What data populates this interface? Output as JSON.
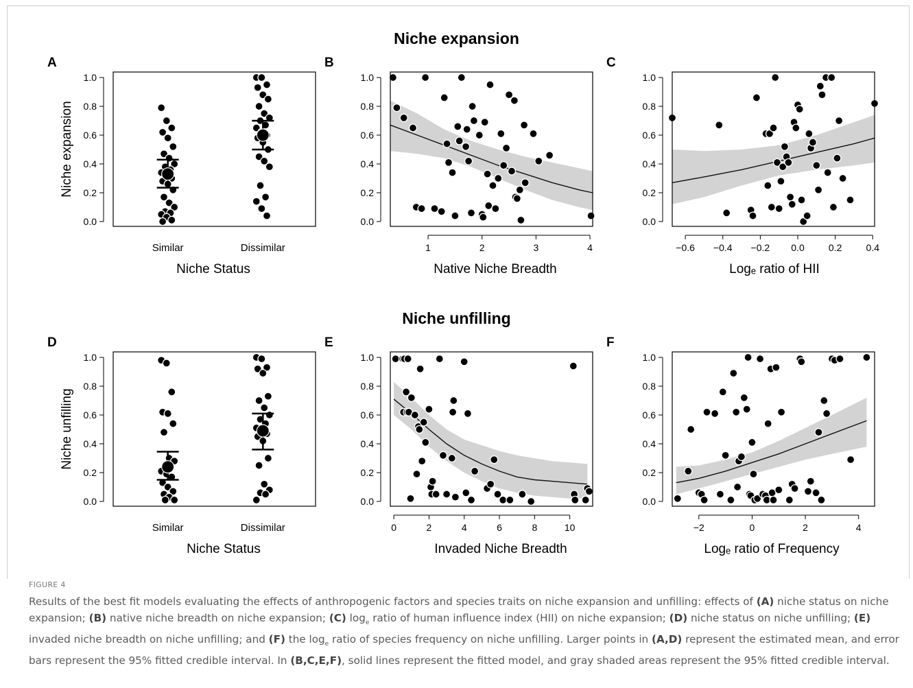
{
  "section_titles": [
    "Niche expansion",
    "Niche unfilling"
  ],
  "figure_label": "FIGURE 4",
  "caption_parts": [
    {
      "t": "Results of the best fit models evaluating the effects of anthropogenic factors and species traits on niche expansion and unfilling: effects of ",
      "b": false
    },
    {
      "t": "(A)",
      "b": true
    },
    {
      "t": " niche status on niche expansion; ",
      "b": false
    },
    {
      "t": "(B)",
      "b": true
    },
    {
      "t": " native niche breadth on niche expansion; ",
      "b": false
    },
    {
      "t": "(C)",
      "b": true
    },
    {
      "t": " log",
      "b": false
    },
    {
      "t": "e",
      "b": false,
      "sub": true
    },
    {
      "t": " ratio of human influence index (HII) on niche expansion; ",
      "b": false
    },
    {
      "t": "(D)",
      "b": true
    },
    {
      "t": " niche status on niche unfilling; ",
      "b": false
    },
    {
      "t": "(E)",
      "b": true
    },
    {
      "t": " invaded niche breadth on niche unfilling; and ",
      "b": false
    },
    {
      "t": "(F)",
      "b": true
    },
    {
      "t": " the log",
      "b": false
    },
    {
      "t": "e",
      "b": false,
      "sub": true
    },
    {
      "t": " ratio of species frequency on niche unfilling. Larger points in ",
      "b": false
    },
    {
      "t": "(A,D)",
      "b": true
    },
    {
      "t": " represent the estimated mean, and error bars represent the 95% fitted credible interval. In ",
      "b": false
    },
    {
      "t": "(B,C,E,F)",
      "b": true
    },
    {
      "t": ", solid lines represent the fitted model, and gray shaded areas represent the 95% fitted credible interval.",
      "b": false
    }
  ],
  "chart_data": [
    {
      "panel": "A",
      "type": "scatter",
      "xlabel": "Niche Status",
      "ylabel": "Niche expansion",
      "categories": [
        "Similar",
        "Dissimilar"
      ],
      "ylim": [
        0,
        1
      ],
      "yticks": [
        "0.0",
        "0.2",
        "0.4",
        "0.6",
        "0.8",
        "1.0"
      ],
      "groups": [
        {
          "category": "Similar",
          "mean": 0.33,
          "ci": [
            0.235,
            0.43
          ],
          "values": [
            0.79,
            0.7,
            0.65,
            0.62,
            0.58,
            0.52,
            0.47,
            0.44,
            0.4,
            0.38,
            0.36,
            0.34,
            0.32,
            0.3,
            0.28,
            0.26,
            0.22,
            0.17,
            0.13,
            0.1,
            0.07,
            0.06,
            0.05,
            0.03,
            0.01,
            0.0
          ]
        },
        {
          "category": "Dissimilar",
          "mean": 0.6,
          "ci": [
            0.5,
            0.7
          ],
          "values": [
            1.0,
            1.0,
            0.95,
            0.93,
            0.88,
            0.85,
            0.8,
            0.75,
            0.72,
            0.7,
            0.67,
            0.65,
            0.62,
            0.6,
            0.58,
            0.55,
            0.5,
            0.45,
            0.42,
            0.38,
            0.25,
            0.17,
            0.14,
            0.09,
            0.04
          ]
        }
      ]
    },
    {
      "panel": "B",
      "type": "scatter",
      "xlabel": "Native Niche Breadth",
      "ylabel": "",
      "xlim": [
        0.3,
        4.05
      ],
      "ylim": [
        0,
        1
      ],
      "xticks": [
        1,
        2,
        3,
        4
      ],
      "yticks": [
        "0.0",
        "0.2",
        "0.4",
        "0.6",
        "0.8",
        "1.0"
      ],
      "x": [
        0.35,
        0.42,
        0.55,
        0.72,
        0.78,
        0.88,
        0.95,
        1.12,
        1.25,
        1.3,
        1.35,
        1.38,
        1.45,
        1.5,
        1.55,
        1.58,
        1.62,
        1.7,
        1.72,
        1.75,
        1.8,
        1.82,
        1.85,
        1.95,
        2.0,
        2.02,
        2.05,
        2.1,
        2.12,
        2.15,
        2.2,
        2.25,
        2.3,
        2.35,
        2.4,
        2.45,
        2.5,
        2.55,
        2.6,
        2.62,
        2.65,
        2.7,
        2.72,
        2.78,
        2.8,
        2.95,
        3.05,
        3.25,
        4.02
      ],
      "y": [
        1.0,
        0.79,
        0.72,
        0.65,
        0.1,
        0.09,
        1.0,
        0.09,
        0.07,
        0.86,
        0.54,
        0.41,
        0.34,
        0.04,
        0.66,
        0.56,
        1.0,
        0.52,
        0.64,
        0.42,
        0.06,
        0.8,
        0.7,
        0.6,
        0.05,
        0.03,
        0.69,
        0.33,
        0.11,
        0.95,
        0.25,
        0.09,
        0.3,
        0.61,
        0.39,
        0.51,
        0.88,
        0.35,
        0.84,
        0.17,
        0.16,
        0.22,
        0.01,
        0.67,
        0.27,
        0.61,
        0.42,
        0.46,
        0.04
      ],
      "fit_x": [
        0.3,
        0.8,
        1.3,
        1.8,
        2.3,
        2.8,
        3.3,
        3.8,
        4.05
      ],
      "fit_y": [
        0.67,
        0.6,
        0.53,
        0.46,
        0.39,
        0.33,
        0.27,
        0.22,
        0.2
      ],
      "band_lower": [
        0.49,
        0.47,
        0.44,
        0.38,
        0.3,
        0.22,
        0.15,
        0.1,
        0.08
      ],
      "band_upper": [
        0.84,
        0.75,
        0.64,
        0.56,
        0.5,
        0.45,
        0.41,
        0.37,
        0.35
      ]
    },
    {
      "panel": "C",
      "type": "scatter",
      "xlabel": "Logₑ ratio of HII",
      "ylabel": "",
      "xlim": [
        -0.67,
        0.41
      ],
      "ylim": [
        0,
        1
      ],
      "xticks": [
        "−0.6",
        "−0.4",
        "−0.2",
        "0.0",
        "0.2",
        "0.4"
      ],
      "xtick_values": [
        -0.6,
        -0.4,
        -0.2,
        0.0,
        0.2,
        0.4
      ],
      "yticks": [
        "0.0",
        "0.2",
        "0.4",
        "0.6",
        "0.8",
        "1.0"
      ],
      "x": [
        -0.67,
        -0.42,
        -0.38,
        -0.25,
        -0.24,
        -0.22,
        -0.17,
        -0.16,
        -0.15,
        -0.14,
        -0.13,
        -0.12,
        -0.11,
        -0.1,
        -0.09,
        -0.08,
        -0.07,
        -0.06,
        -0.05,
        -0.04,
        -0.03,
        -0.02,
        -0.01,
        0.0,
        0.01,
        0.02,
        0.03,
        0.05,
        0.06,
        0.07,
        0.08,
        0.1,
        0.11,
        0.12,
        0.13,
        0.15,
        0.16,
        0.18,
        0.19,
        0.21,
        0.22,
        0.24,
        0.28,
        0.41
      ],
      "y": [
        0.72,
        0.67,
        0.06,
        0.08,
        0.04,
        0.86,
        0.61,
        0.25,
        0.61,
        0.1,
        0.65,
        1.0,
        0.41,
        0.09,
        0.28,
        0.38,
        0.52,
        0.45,
        0.41,
        0.17,
        0.12,
        0.69,
        0.65,
        0.81,
        0.78,
        0.15,
        0.0,
        0.04,
        0.61,
        0.51,
        0.55,
        0.39,
        0.22,
        0.94,
        0.88,
        1.0,
        0.34,
        1.0,
        0.1,
        0.44,
        0.7,
        0.3,
        0.15,
        0.82
      ],
      "fit_x": [
        -0.67,
        -0.5,
        -0.3,
        -0.1,
        0.1,
        0.3,
        0.41
      ],
      "fit_y": [
        0.27,
        0.31,
        0.36,
        0.42,
        0.48,
        0.54,
        0.58
      ],
      "band_lower": [
        0.12,
        0.17,
        0.25,
        0.32,
        0.36,
        0.39,
        0.41
      ],
      "band_upper": [
        0.5,
        0.49,
        0.5,
        0.53,
        0.6,
        0.69,
        0.74
      ]
    },
    {
      "panel": "D",
      "type": "scatter",
      "xlabel": "Niche Status",
      "ylabel": "Niche unfilling",
      "categories": [
        "Similar",
        "Dissimilar"
      ],
      "ylim": [
        0,
        1
      ],
      "yticks": [
        "0.0",
        "0.2",
        "0.4",
        "0.6",
        "0.8",
        "1.0"
      ],
      "groups": [
        {
          "category": "Similar",
          "mean": 0.24,
          "ci": [
            0.15,
            0.345
          ],
          "values": [
            0.98,
            0.96,
            0.76,
            0.62,
            0.61,
            0.54,
            0.48,
            0.3,
            0.28,
            0.25,
            0.23,
            0.21,
            0.19,
            0.17,
            0.13,
            0.1,
            0.07,
            0.05,
            0.03,
            0.01,
            0.01
          ]
        },
        {
          "category": "Dissimilar",
          "mean": 0.49,
          "ci": [
            0.36,
            0.61
          ],
          "values": [
            1.0,
            0.99,
            0.93,
            0.92,
            0.89,
            0.73,
            0.7,
            0.65,
            0.6,
            0.57,
            0.54,
            0.51,
            0.49,
            0.47,
            0.45,
            0.42,
            0.3,
            0.25,
            0.12,
            0.08,
            0.06,
            0.05,
            0.01
          ]
        }
      ]
    },
    {
      "panel": "E",
      "type": "scatter",
      "xlabel": "Invaded Niche Breadth",
      "ylabel": "",
      "xlim": [
        -0.2,
        11.3
      ],
      "ylim": [
        0,
        1
      ],
      "xticks": [
        0,
        2,
        4,
        6,
        8,
        10
      ],
      "yticks": [
        "0.0",
        "0.2",
        "0.4",
        "0.6",
        "0.8",
        "1.0"
      ],
      "x": [
        0.1,
        0.5,
        0.55,
        0.6,
        0.7,
        0.75,
        0.8,
        0.85,
        0.95,
        1.0,
        1.2,
        1.3,
        1.4,
        1.45,
        1.5,
        1.6,
        1.7,
        1.8,
        2.0,
        2.1,
        2.15,
        2.2,
        2.4,
        2.6,
        2.8,
        3.0,
        3.3,
        3.35,
        3.4,
        3.5,
        4.0,
        4.1,
        4.2,
        4.4,
        4.6,
        5.3,
        5.5,
        5.7,
        5.9,
        6.2,
        6.6,
        7.3,
        7.8,
        10.2,
        10.25,
        10.3,
        10.9,
        11.0,
        11.1
      ],
      "y": [
        0.99,
        0.99,
        0.62,
        0.99,
        0.76,
        0.62,
        0.99,
        0.62,
        0.02,
        0.72,
        0.6,
        0.19,
        0.52,
        0.5,
        0.92,
        0.28,
        0.55,
        0.41,
        0.64,
        0.1,
        0.05,
        0.14,
        0.05,
        0.99,
        0.32,
        0.05,
        0.3,
        0.62,
        0.7,
        0.03,
        0.97,
        0.06,
        0.61,
        0.01,
        0.21,
        0.09,
        0.12,
        0.29,
        0.05,
        0.01,
        0.01,
        0.05,
        0.0,
        0.94,
        0.05,
        0.01,
        0.01,
        0.09,
        0.07
      ],
      "fit_x": [
        0.0,
        1.0,
        2.0,
        3.0,
        4.0,
        5.0,
        6.0,
        7.0,
        8.0,
        9.0,
        10.0,
        11.0
      ],
      "fit_y": [
        0.71,
        0.61,
        0.5,
        0.4,
        0.32,
        0.26,
        0.21,
        0.17,
        0.15,
        0.14,
        0.13,
        0.12
      ],
      "band_lower": [
        0.6,
        0.5,
        0.38,
        0.28,
        0.2,
        0.14,
        0.09,
        0.06,
        0.04,
        0.03,
        0.02,
        0.02
      ],
      "band_upper": [
        0.83,
        0.72,
        0.6,
        0.5,
        0.43,
        0.39,
        0.35,
        0.32,
        0.3,
        0.28,
        0.27,
        0.26
      ]
    },
    {
      "panel": "F",
      "type": "scatter",
      "xlabel": "Logₑ ratio of Frequency",
      "ylabel": "",
      "xlim": [
        -3.0,
        4.6
      ],
      "ylim": [
        0,
        1
      ],
      "xticks": [
        "−2",
        "0",
        "2",
        "4"
      ],
      "xtick_values": [
        -2,
        0,
        2,
        4
      ],
      "yticks": [
        "0.0",
        "0.2",
        "0.4",
        "0.6",
        "0.8",
        "1.0"
      ],
      "x": [
        -2.8,
        -2.4,
        -2.3,
        -2.0,
        -1.9,
        -1.8,
        -1.7,
        -1.4,
        -1.2,
        -1.1,
        -1.0,
        -0.8,
        -0.7,
        -0.6,
        -0.55,
        -0.5,
        -0.4,
        -0.3,
        -0.2,
        -0.15,
        -0.1,
        -0.05,
        0.0,
        0.05,
        0.1,
        0.2,
        0.3,
        0.4,
        0.5,
        0.55,
        0.6,
        0.7,
        0.75,
        0.8,
        0.9,
        1.0,
        1.1,
        1.4,
        1.5,
        1.6,
        1.8,
        1.85,
        2.1,
        2.2,
        2.4,
        2.5,
        2.6,
        2.7,
        2.8,
        3.0,
        3.1,
        3.3,
        3.7,
        4.3
      ],
      "y": [
        0.02,
        0.21,
        0.5,
        0.06,
        0.05,
        0.01,
        0.62,
        0.61,
        0.05,
        0.76,
        0.32,
        0.01,
        0.89,
        0.62,
        0.1,
        0.28,
        0.31,
        0.72,
        0.64,
        1.0,
        0.05,
        0.04,
        0.41,
        0.19,
        0.01,
        0.02,
        0.99,
        0.05,
        0.04,
        0.01,
        0.54,
        0.92,
        0.06,
        0.01,
        0.93,
        0.08,
        0.62,
        0.01,
        0.12,
        0.09,
        0.99,
        0.97,
        0.07,
        0.14,
        0.06,
        0.48,
        0.01,
        0.7,
        0.61,
        0.99,
        0.98,
        0.99,
        0.29,
        1.0
      ],
      "fit_x": [
        -2.85,
        -2.0,
        -1.0,
        0.0,
        1.0,
        2.0,
        3.0,
        4.3
      ],
      "fit_y": [
        0.13,
        0.16,
        0.21,
        0.27,
        0.33,
        0.4,
        0.47,
        0.56
      ],
      "band_lower": [
        0.05,
        0.09,
        0.14,
        0.19,
        0.24,
        0.29,
        0.33,
        0.38
      ],
      "band_upper": [
        0.24,
        0.25,
        0.29,
        0.34,
        0.42,
        0.51,
        0.6,
        0.72
      ]
    }
  ]
}
